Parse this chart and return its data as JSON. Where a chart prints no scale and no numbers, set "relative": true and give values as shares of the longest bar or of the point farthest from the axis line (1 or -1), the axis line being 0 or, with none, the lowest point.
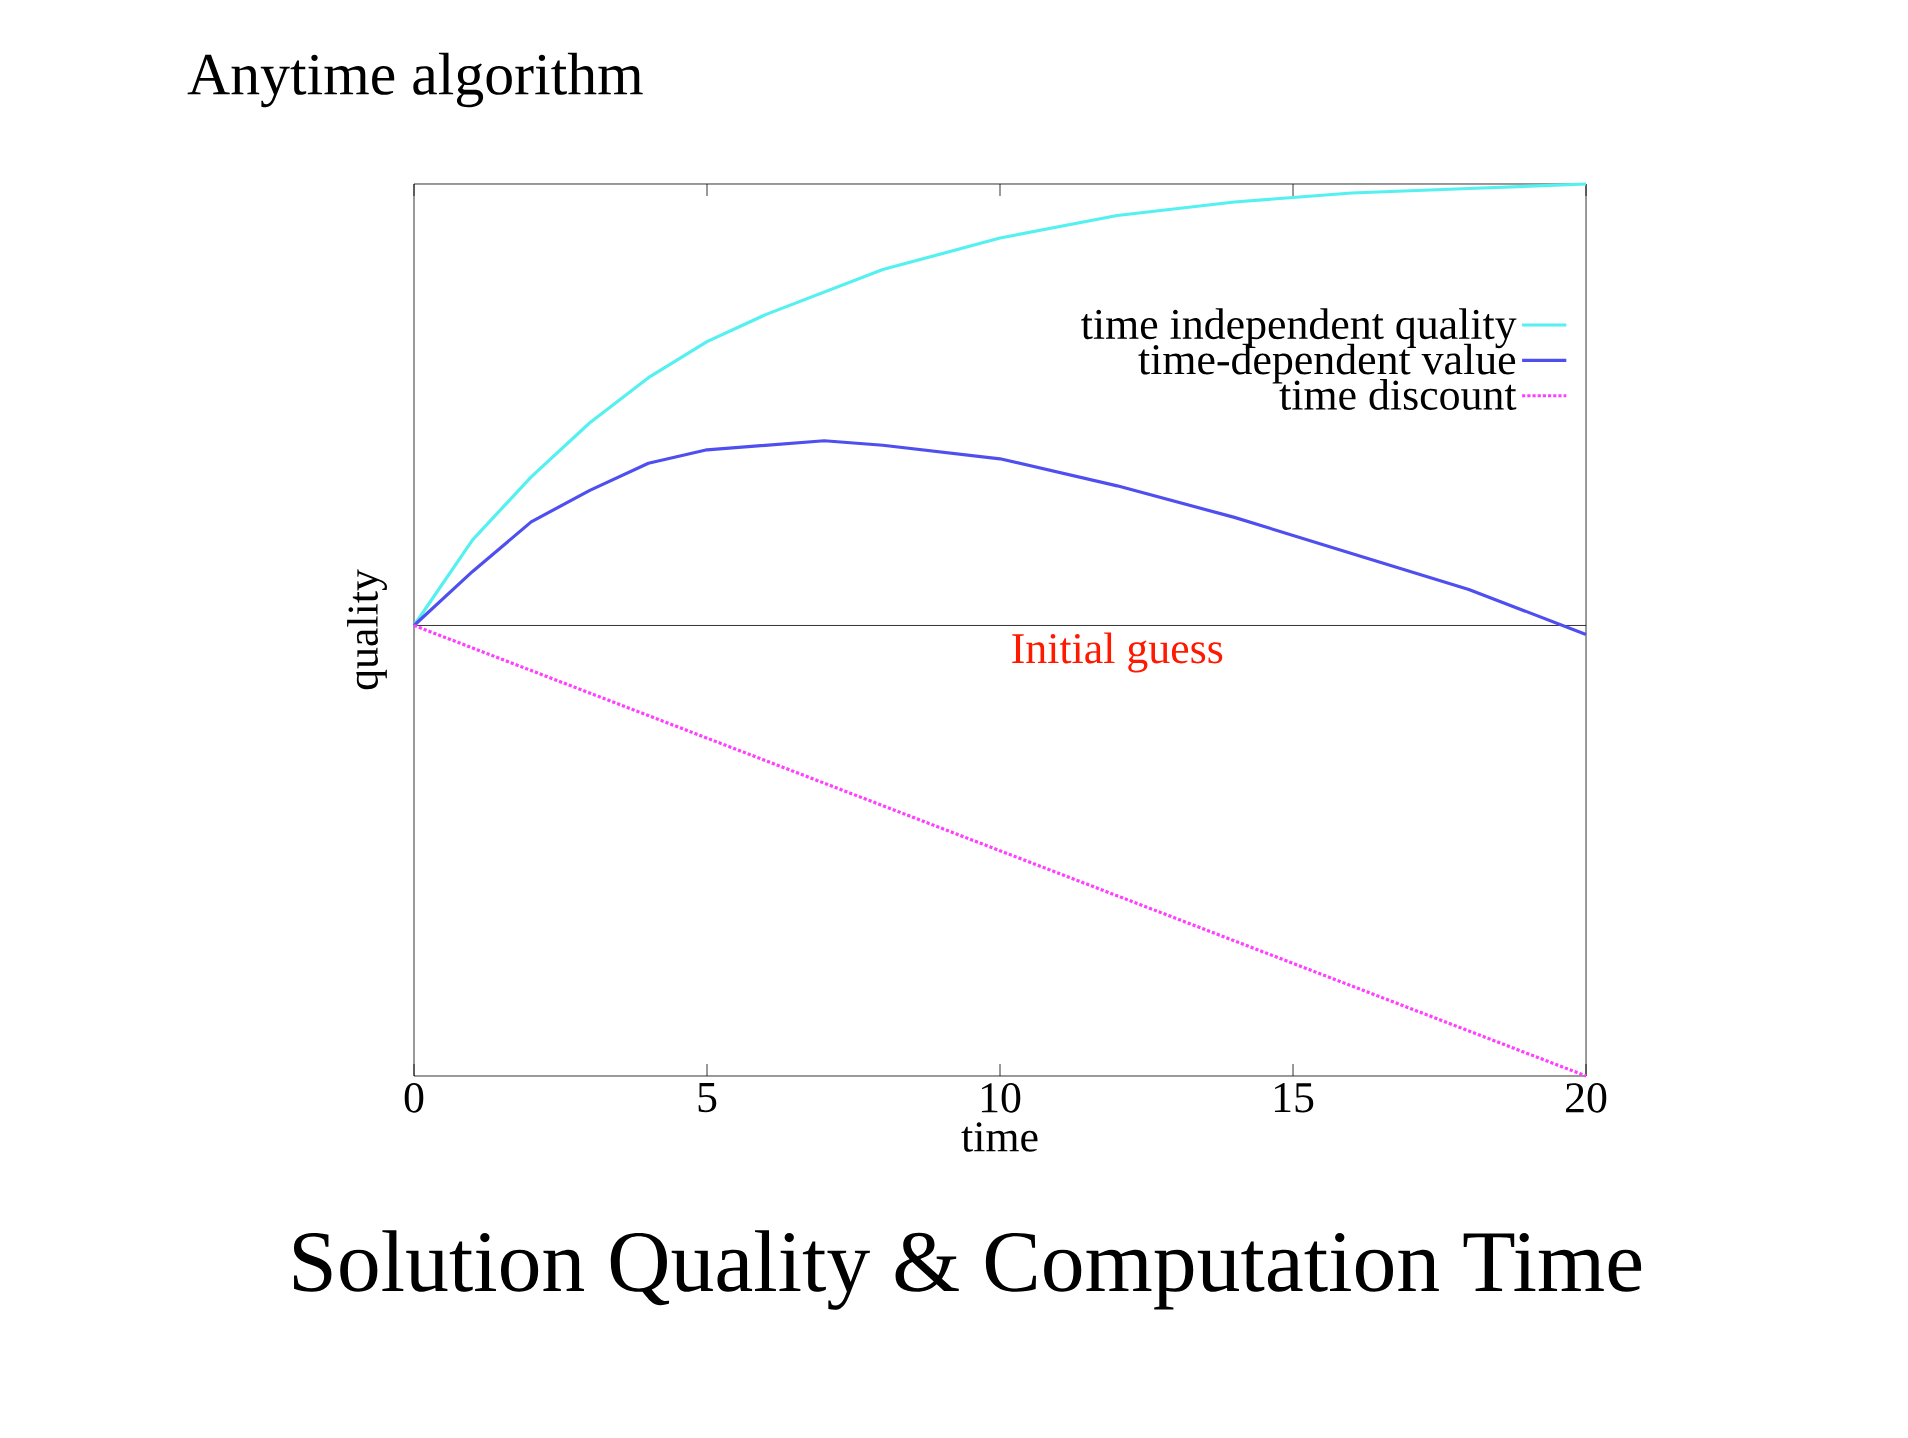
{
  "chart_data": {
    "type": "line",
    "title": "Anytime algorithm",
    "subtitle": "Solution Quality & Computation Time",
    "xlabel": "time",
    "ylabel": "quality",
    "relative": true,
    "xlim": [
      0,
      20
    ],
    "xticks": [
      0,
      5,
      10,
      15,
      20
    ],
    "legend": "top right",
    "marker": "none",
    "series": [
      {
        "name": "time independent quality",
        "color": "#55f0f0",
        "x": [
          0,
          1,
          2,
          3,
          4,
          5,
          6,
          8,
          10,
          12,
          14,
          16,
          18,
          20
        ],
        "values": [
          0,
          0.19,
          0.33,
          0.45,
          0.55,
          0.63,
          0.69,
          0.79,
          0.86,
          0.91,
          0.94,
          0.96,
          0.97,
          0.98
        ]
      },
      {
        "name": "time-dependent value",
        "color": "#4f4ff0",
        "x": [
          0,
          1,
          2,
          3,
          4,
          5,
          6,
          7,
          8,
          10,
          12,
          14,
          16,
          18,
          20
        ],
        "values": [
          0,
          0.12,
          0.23,
          0.3,
          0.36,
          0.39,
          0.4,
          0.41,
          0.4,
          0.37,
          0.31,
          0.24,
          0.16,
          0.08,
          -0.02
        ]
      },
      {
        "name": "time discount",
        "color": "#ff40ff",
        "line_style": "dotted",
        "x": [
          0,
          20
        ],
        "values": [
          0,
          -1
        ]
      }
    ],
    "ref_lines": [
      {
        "axis": "y",
        "value": 0,
        "label": "Initial guess",
        "color": "#000000"
      }
    ]
  }
}
